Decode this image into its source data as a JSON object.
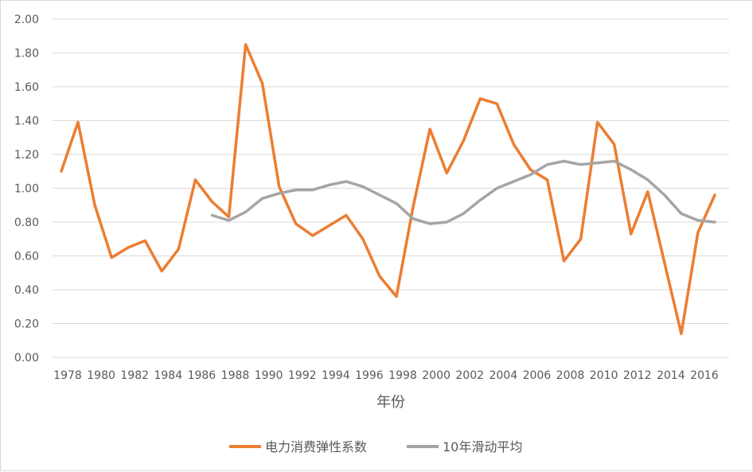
{
  "chart_data": {
    "type": "line",
    "title": "",
    "xlabel": "年份",
    "ylabel": "",
    "ylim": [
      0,
      2
    ],
    "y_ticks": [
      "0.00",
      "0.20",
      "0.40",
      "0.60",
      "0.80",
      "1.00",
      "1.20",
      "1.40",
      "1.60",
      "1.80",
      "2.00"
    ],
    "x_tick_labels": [
      "1978",
      "1980",
      "1982",
      "1984",
      "1986",
      "1988",
      "1990",
      "1992",
      "1994",
      "1996",
      "1998",
      "2000",
      "2002",
      "2004",
      "2006",
      "2008",
      "2010",
      "2012",
      "2014",
      "2016"
    ],
    "x": [
      1978,
      1979,
      1980,
      1981,
      1982,
      1983,
      1984,
      1985,
      1986,
      1987,
      1988,
      1989,
      1990,
      1991,
      1992,
      1993,
      1994,
      1995,
      1996,
      1997,
      1998,
      1999,
      2000,
      2001,
      2002,
      2003,
      2004,
      2005,
      2006,
      2007,
      2008,
      2009,
      2010,
      2011,
      2012,
      2013,
      2014,
      2015,
      2016,
      2017
    ],
    "grid": true,
    "legend_position": "bottom",
    "series": [
      {
        "name": "电力消费弹性系数",
        "color": "#ED7D31",
        "values": [
          1.1,
          1.39,
          0.9,
          0.59,
          0.65,
          0.69,
          0.51,
          0.64,
          1.05,
          0.92,
          0.83,
          1.85,
          1.62,
          1.01,
          0.79,
          0.72,
          0.78,
          0.84,
          0.7,
          0.48,
          0.36,
          0.89,
          1.35,
          1.09,
          1.28,
          1.53,
          1.5,
          1.26,
          1.11,
          1.05,
          0.57,
          0.7,
          1.39,
          1.26,
          0.73,
          0.98,
          0.56,
          0.14,
          0.74,
          0.96
        ]
      },
      {
        "name": "10年滑动平均",
        "color": "#A5A5A5",
        "values": [
          null,
          null,
          null,
          null,
          null,
          null,
          null,
          null,
          null,
          0.84,
          0.81,
          0.86,
          0.94,
          0.97,
          0.99,
          0.99,
          1.02,
          1.04,
          1.01,
          0.96,
          0.91,
          0.82,
          0.79,
          0.8,
          0.85,
          0.93,
          1.0,
          1.04,
          1.08,
          1.14,
          1.16,
          1.14,
          1.15,
          1.16,
          1.11,
          1.05,
          0.96,
          0.85,
          0.81,
          0.8
        ]
      }
    ]
  }
}
